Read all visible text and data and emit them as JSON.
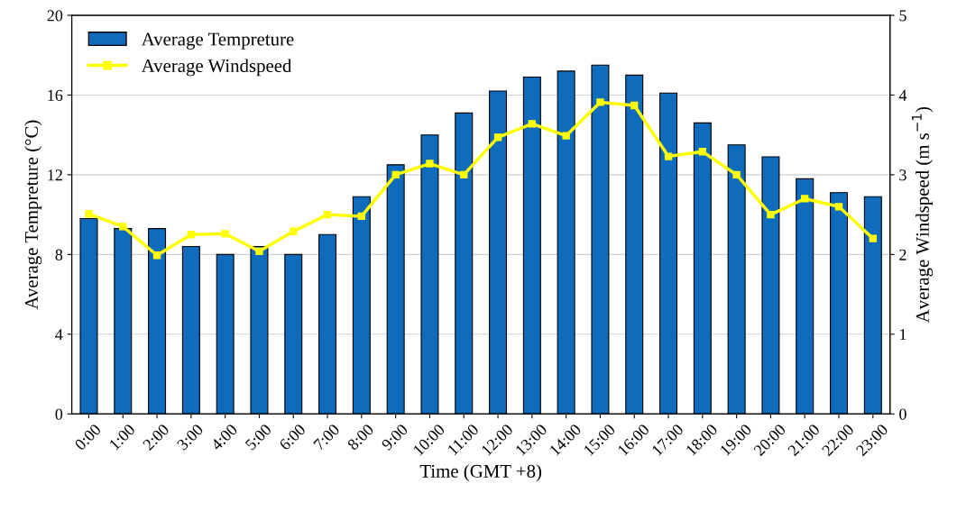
{
  "chart_data": {
    "type": "bar",
    "xlabel": "Time (GMT +8)",
    "ylabel": "Average Tempreture (°C)",
    "y2label": "Average Windspeed (m s$^{−1}$)",
    "categories": [
      "0:00",
      "1:00",
      "2:00",
      "3:00",
      "4:00",
      "5:00",
      "6:00",
      "7:00",
      "8:00",
      "9:00",
      "10:00",
      "11:00",
      "12:00",
      "13:00",
      "14:00",
      "15:00",
      "16:00",
      "17:00",
      "18:00",
      "19:00",
      "20:00",
      "21:00",
      "22:00",
      "23:00"
    ],
    "series": [
      {
        "name": "Average Tempreture",
        "color": "#0f6cbd",
        "values": [
          9.8,
          9.3,
          9.3,
          8.4,
          8.0,
          8.4,
          8.0,
          9.0,
          10.9,
          12.5,
          14.0,
          15.1,
          16.2,
          16.9,
          17.2,
          17.5,
          17.0,
          16.1,
          14.6,
          13.5,
          12.9,
          11.8,
          11.1,
          10.9
        ]
      },
      {
        "name": "Average Windspeed",
        "type": "line",
        "axis": "y2",
        "color": "#ffff00",
        "marker": "square",
        "line_style": "solid",
        "values": [
          2.51,
          2.35,
          1.99,
          2.25,
          2.26,
          2.04,
          2.29,
          2.5,
          2.48,
          3.0,
          3.14,
          3.0,
          3.47,
          3.64,
          3.49,
          3.91,
          3.87,
          3.23,
          3.29,
          3.0,
          2.5,
          2.7,
          2.6,
          2.2
        ]
      }
    ],
    "ylim": [
      0,
      20
    ],
    "yticks": [
      0,
      4,
      8,
      12,
      16,
      20
    ],
    "y2lim": [
      0,
      5
    ],
    "y2ticks": [
      0,
      1,
      2,
      3,
      4,
      5
    ],
    "grid": "y",
    "legend": "top left"
  }
}
